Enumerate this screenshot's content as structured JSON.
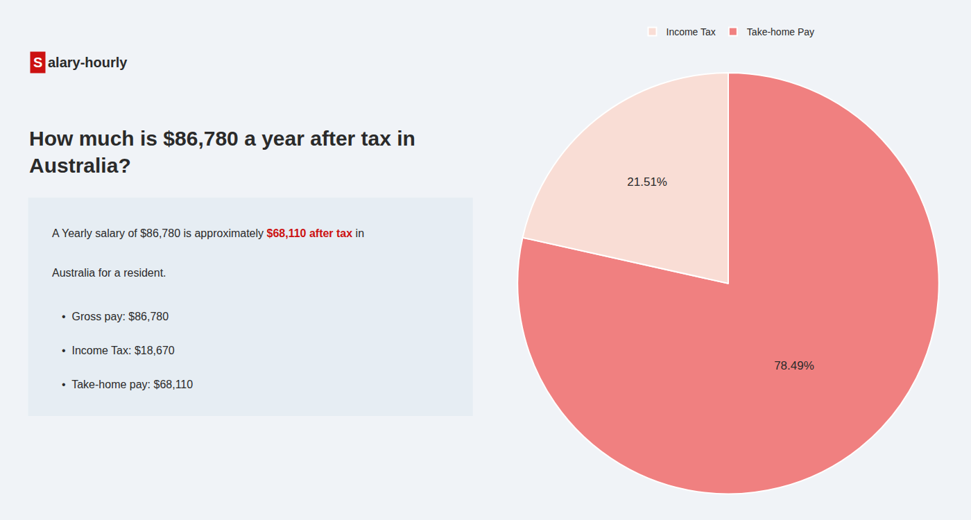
{
  "chart_data": {
    "type": "pie",
    "title": "How much is $86,780 a year after tax in\nAustralia?",
    "categories": [
      "Take-home Pay",
      "Income Tax"
    ],
    "values": [
      78.49,
      21.51
    ],
    "value_labels": [
      "78.49%",
      "21.51%"
    ],
    "colors": [
      "#f08080",
      "#f9ddd5"
    ],
    "data_labels": true,
    "legend": "top",
    "annotations": [
      {
        "text": "S",
        "color": "#cc1111"
      },
      {
        "text": "alary-hourly"
      },
      {
        "text": "A Yearly salary of $86,780 is approximately "
      },
      {
        "text": "$68,110 after tax",
        "color": "#cc1111"
      },
      {
        "text": " in"
      },
      {
        "text": "Australia for a resident."
      },
      {
        "text": "•  Gross pay: $86,780"
      },
      {
        "text": "•  Income Tax: $18,670"
      },
      {
        "text": "•  Take-home pay: $68,110"
      }
    ]
  }
}
